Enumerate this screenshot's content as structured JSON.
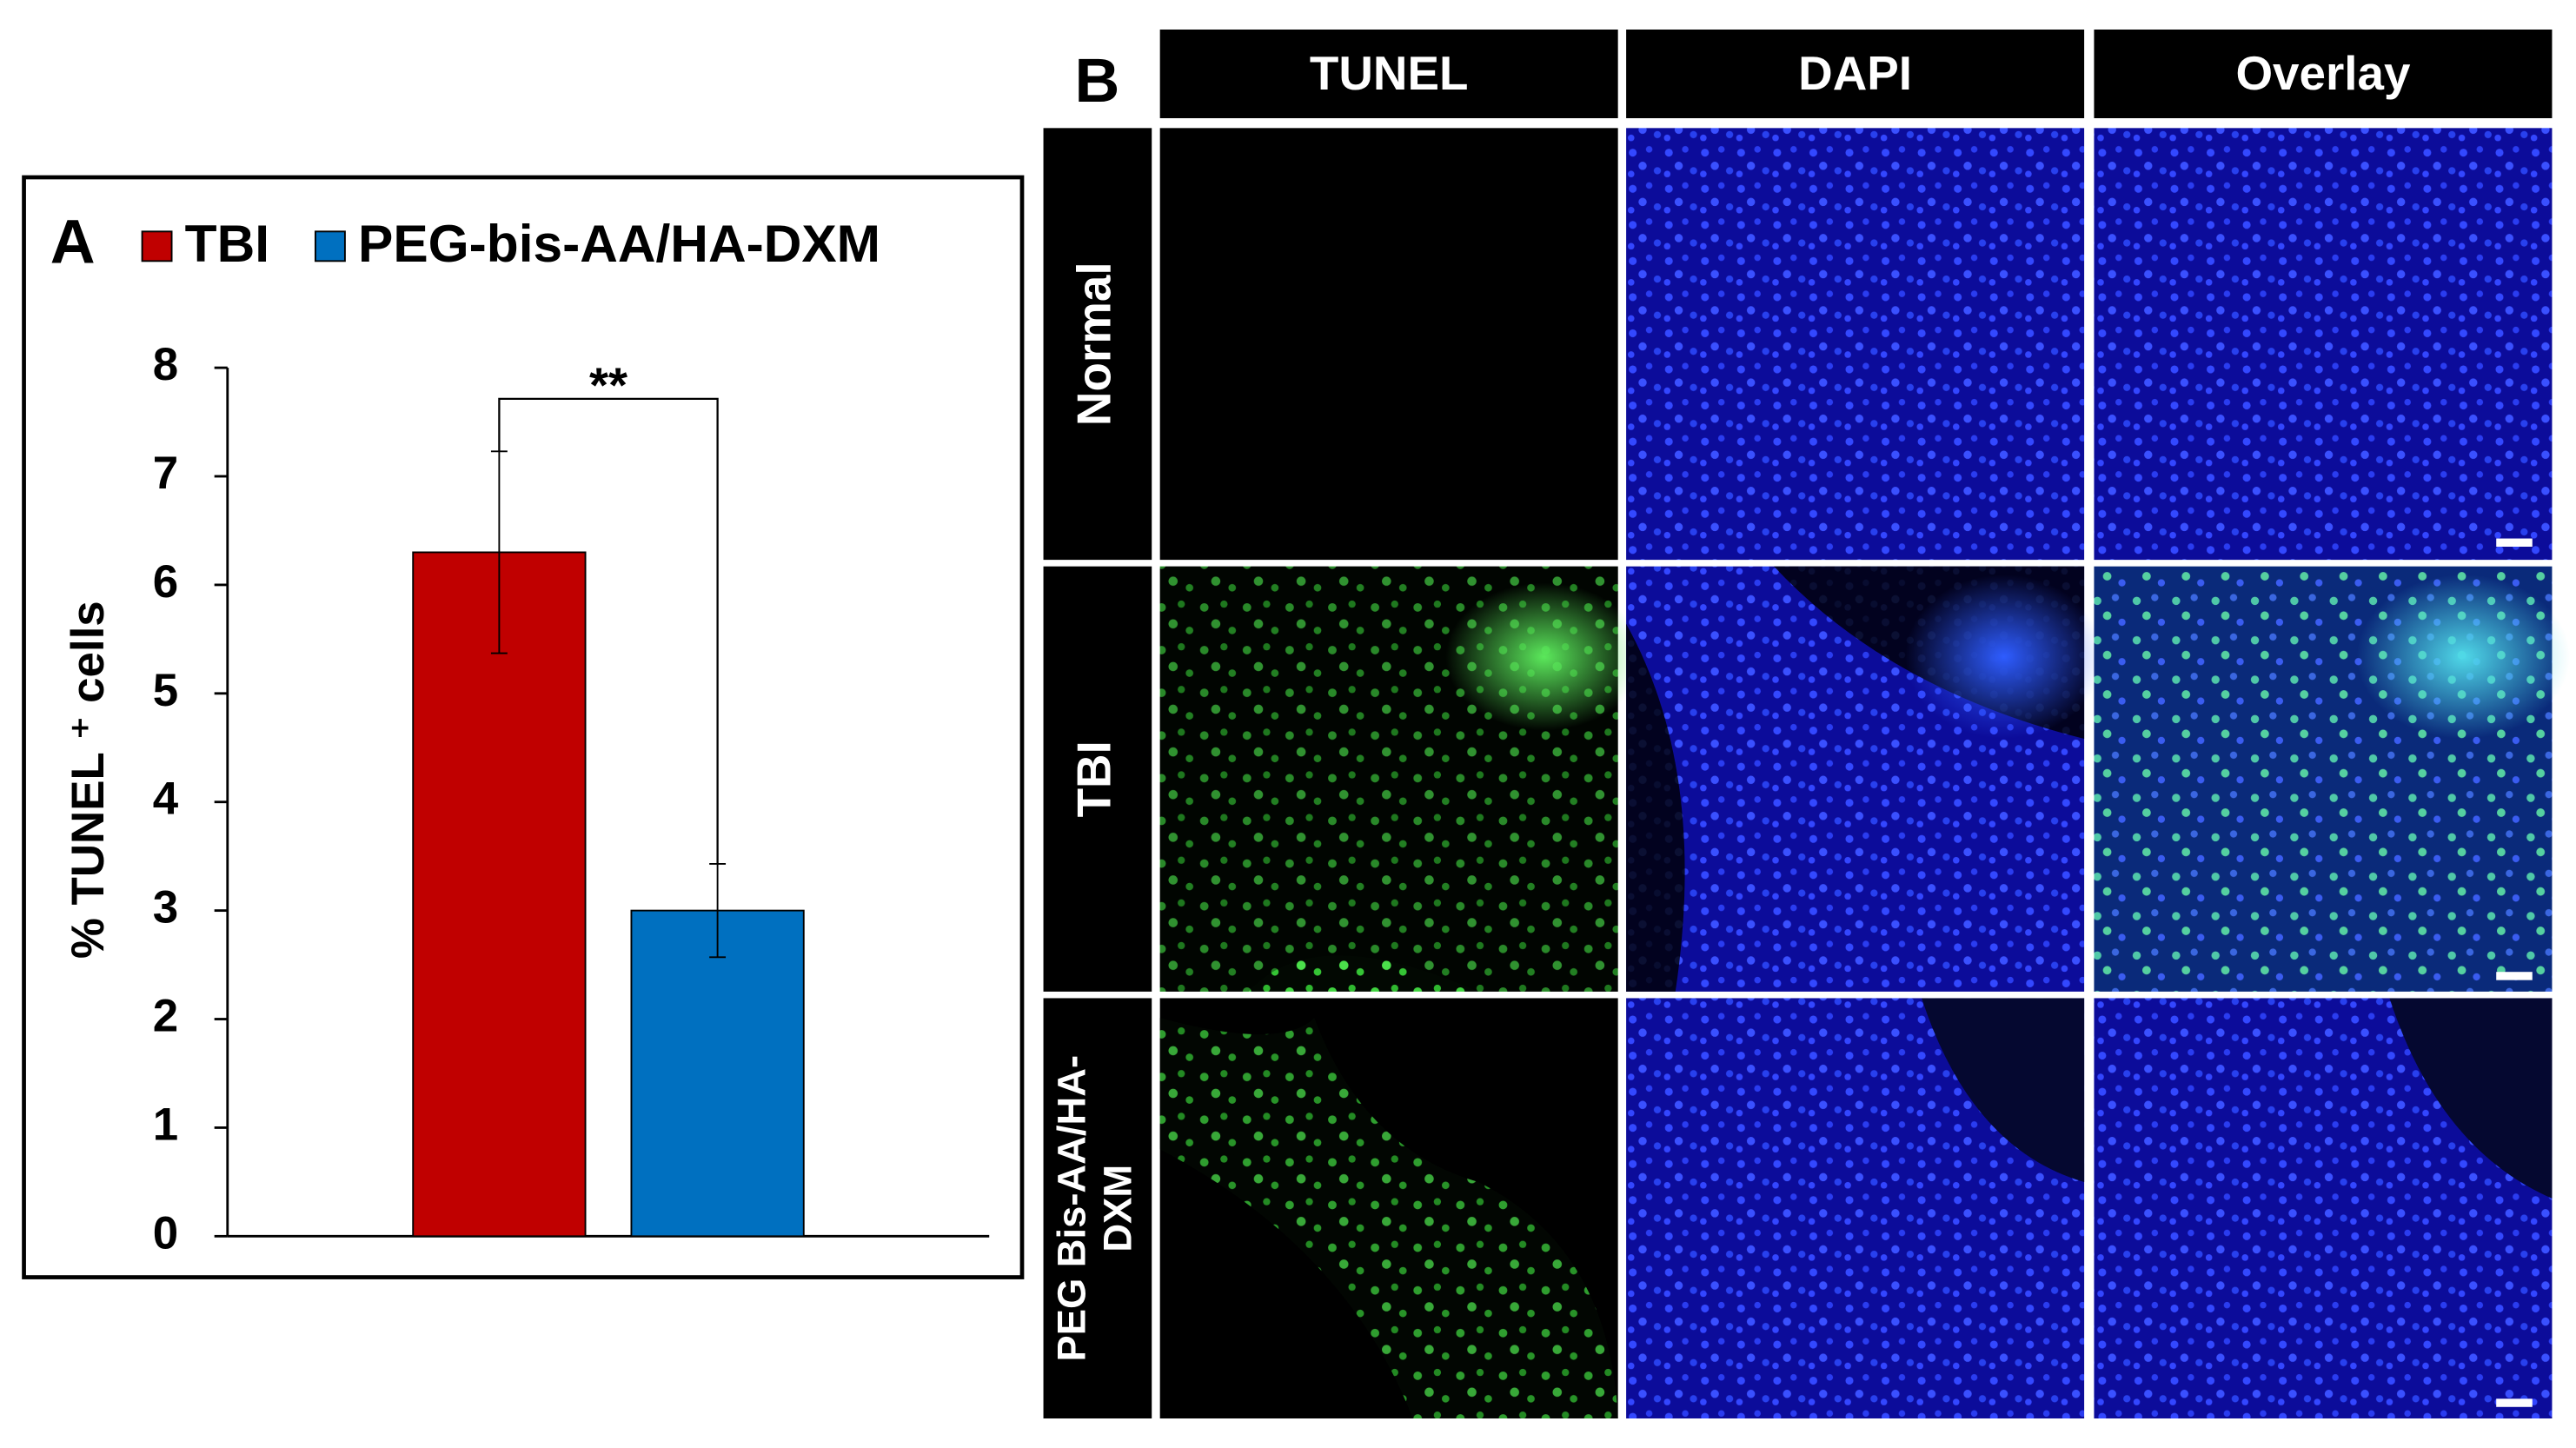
{
  "chart_data": {
    "type": "bar",
    "panel_label": "A",
    "ylabel": "% TUNEL ⁺ cells",
    "categories": [
      null
    ],
    "series": [
      {
        "name": "TBI",
        "color": "#c00000",
        "values": [
          6.3
        ],
        "errors": [
          0.93
        ]
      },
      {
        "name": "PEG-bis-AA/HA-DXM",
        "color": "#0070c0",
        "values": [
          3.0
        ],
        "errors": [
          0.43
        ]
      }
    ],
    "ylim": [
      0,
      8
    ],
    "yticks": [
      0,
      1,
      2,
      3,
      4,
      5,
      6,
      7,
      8
    ],
    "annotation": "**",
    "legend": "top",
    "grid": false
  },
  "panel_b": {
    "panel_label": "B",
    "columns": [
      "TUNEL",
      "DAPI",
      "Overlay"
    ],
    "rows": [
      {
        "label": [
          "Normal"
        ]
      },
      {
        "label": [
          "TBI"
        ]
      },
      {
        "label": [
          "PEG Bis-AA/HA-",
          "DXM"
        ]
      }
    ]
  }
}
